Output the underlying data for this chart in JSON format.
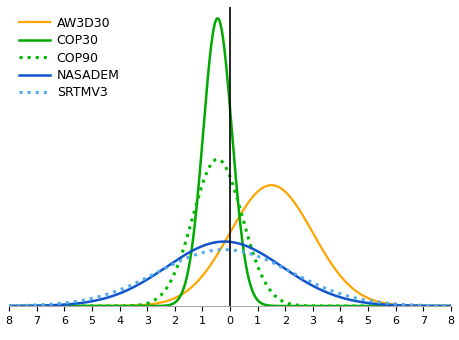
{
  "title": "",
  "xlim": [
    -8,
    8
  ],
  "ylim": [
    0,
    0.52
  ],
  "xticks": [
    -8,
    -7,
    -6,
    -5,
    -4,
    -3,
    -2,
    -1,
    0,
    1,
    2,
    3,
    4,
    5,
    6,
    7,
    8
  ],
  "vline_x": 0,
  "series": [
    {
      "name": "AW3D30",
      "color": "#FFA500",
      "linestyle": "solid",
      "linewidth": 1.6,
      "mean": 1.5,
      "std": 1.5,
      "amplitude": 0.21
    },
    {
      "name": "COP30",
      "color": "#00AA00",
      "linestyle": "solid",
      "linewidth": 1.8,
      "mean": -0.45,
      "std": 0.52,
      "amplitude": 0.5
    },
    {
      "name": "COP90",
      "color": "#00BB00",
      "linestyle": "dotted",
      "linewidth": 2.2,
      "mean": -0.45,
      "std": 0.9,
      "amplitude": 0.255
    },
    {
      "name": "NASADEM",
      "color": "#1155CC",
      "linestyle": "solid",
      "linewidth": 1.8,
      "mean": -0.2,
      "std": 2.1,
      "amplitude": 0.112
    },
    {
      "name": "SRTMV3",
      "color": "#55AAEE",
      "linestyle": "dotted",
      "linewidth": 2.2,
      "mean": -0.2,
      "std": 2.4,
      "amplitude": 0.098
    }
  ],
  "legend_loc": "upper left",
  "legend_fontsize": 9,
  "background_color": "#FFFFFF",
  "figsize": [
    4.6,
    3.4
  ],
  "dpi": 100
}
